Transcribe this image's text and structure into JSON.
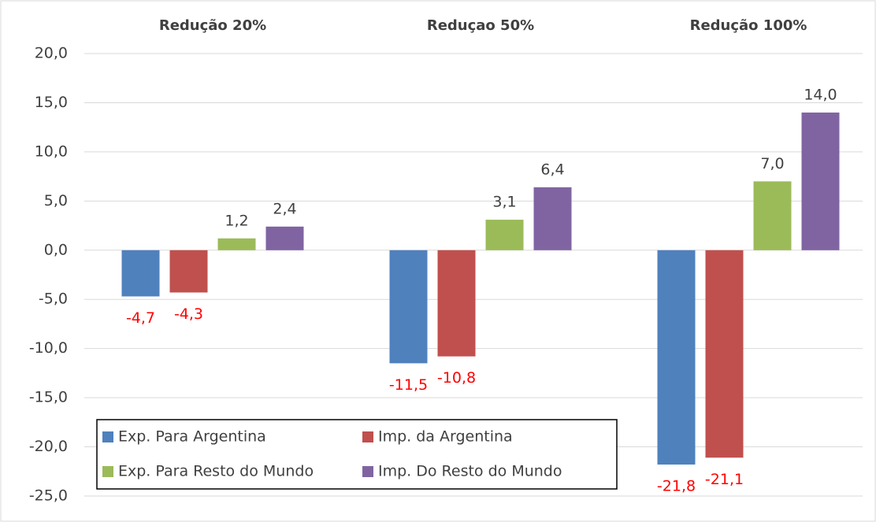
{
  "chart_data": {
    "type": "bar",
    "categories": [
      "Redução 20%",
      "Reduçao 50%",
      "Redução 100%"
    ],
    "series": [
      {
        "name": "Exp. Para Argentina",
        "color": "#4f81bd",
        "values": [
          -4.7,
          -11.5,
          -21.8
        ],
        "value_labels": [
          "-4,7",
          "-11,5",
          "-21,8"
        ]
      },
      {
        "name": "Imp. da Argentina",
        "color": "#c0504d",
        "values": [
          -4.3,
          -10.8,
          -21.1
        ],
        "value_labels": [
          "-4,3",
          "-10,8",
          "-21,1"
        ]
      },
      {
        "name": "Exp. Para Resto do Mundo",
        "color": "#9bbb59",
        "values": [
          1.2,
          3.1,
          7.0
        ],
        "value_labels": [
          "1,2",
          "3,1",
          "7,0"
        ]
      },
      {
        "name": "Imp. Do Resto do Mundo",
        "color": "#8064a2",
        "values": [
          2.4,
          6.4,
          14.0
        ],
        "value_labels": [
          "2,4",
          "6,4",
          "14,0"
        ]
      }
    ],
    "ylim": [
      -25,
      20
    ],
    "yticks": [
      {
        "value": 20,
        "label": "20,0"
      },
      {
        "value": 15,
        "label": "15,0"
      },
      {
        "value": 10,
        "label": "10,0"
      },
      {
        "value": 5,
        "label": "5,0"
      },
      {
        "value": 0,
        "label": "0,0"
      },
      {
        "value": -5,
        "label": "-5,0"
      },
      {
        "value": -10,
        "label": "-10,0"
      },
      {
        "value": -15,
        "label": "-15,0"
      },
      {
        "value": -20,
        "label": "-20,0"
      },
      {
        "value": -25,
        "label": "-25,0"
      }
    ],
    "grid": true,
    "negative_label_color": "#ff0000"
  }
}
